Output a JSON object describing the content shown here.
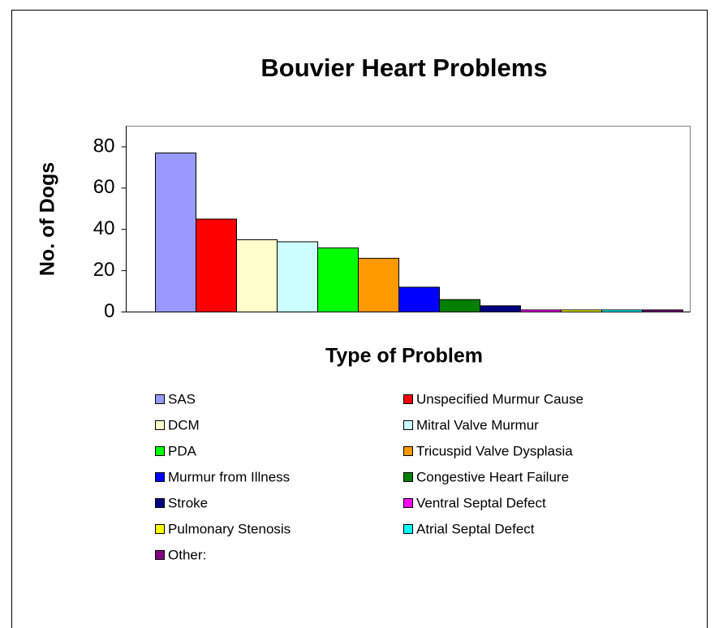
{
  "chart_data": {
    "type": "bar",
    "title": "Bouvier Heart Problems",
    "x_label": "Type of Problem",
    "y_label": "No. of Dogs",
    "ylim": [
      0,
      90
    ],
    "yticks": [
      0,
      20,
      40,
      60,
      80
    ],
    "series": [
      {
        "name": "SAS",
        "color": "#9999ff",
        "values": [
          77
        ]
      },
      {
        "name": "Unspecified Murmur Cause",
        "color": "#ff0000",
        "values": [
          45
        ]
      },
      {
        "name": "DCM",
        "color": "#ffffcc",
        "values": [
          35
        ]
      },
      {
        "name": "Mitral Valve Murmur",
        "color": "#ccffff",
        "values": [
          34
        ]
      },
      {
        "name": "PDA",
        "color": "#00ff00",
        "values": [
          31
        ]
      },
      {
        "name": "Tricuspid Valve Dysplasia",
        "color": "#ff9900",
        "values": [
          26
        ]
      },
      {
        "name": "Murmur from Illness",
        "color": "#0000ff",
        "values": [
          12
        ]
      },
      {
        "name": "Congestive Heart Failure",
        "color": "#008000",
        "values": [
          6
        ]
      },
      {
        "name": "Stroke",
        "color": "#000080",
        "values": [
          3
        ]
      },
      {
        "name": "Ventral Septal Defect",
        "color": "#ff00ff",
        "values": [
          1
        ]
      },
      {
        "name": "Pulmonary Stenosis",
        "color": "#ffff00",
        "values": [
          1
        ]
      },
      {
        "name": "Atrial Septal Defect",
        "color": "#00ffff",
        "values": [
          1
        ]
      },
      {
        "name": "Other:",
        "color": "#800080",
        "values": [
          1
        ]
      }
    ]
  }
}
